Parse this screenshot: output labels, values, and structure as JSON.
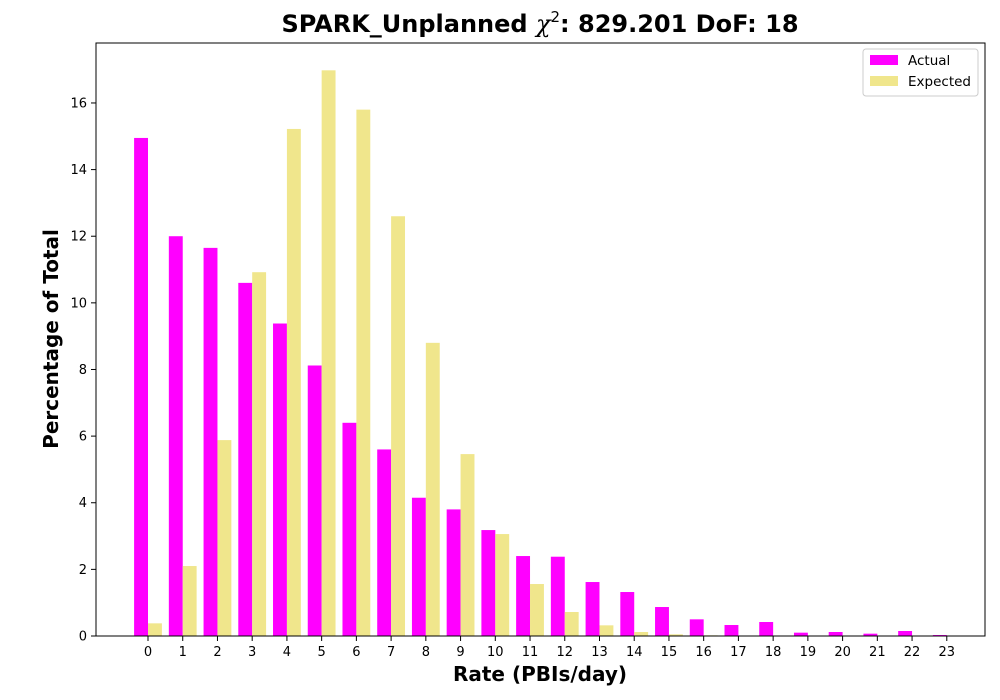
{
  "chart_data": {
    "type": "bar",
    "title_prefix": "SPARK_Unplanned ",
    "title_chi": "χ",
    "title_sup": "2",
    "title_suffix": ": 829.201 DoF: 18",
    "xlabel": "Rate (PBIs/day)",
    "ylabel": "Percentage of Total",
    "categories": [
      "0",
      "1",
      "2",
      "3",
      "4",
      "5",
      "6",
      "7",
      "8",
      "9",
      "10",
      "11",
      "12",
      "13",
      "14",
      "15",
      "16",
      "17",
      "18",
      "19",
      "20",
      "21",
      "22",
      "23"
    ],
    "ylim": [
      0,
      17.8
    ],
    "yticks": [
      0,
      2,
      4,
      6,
      8,
      10,
      12,
      14,
      16
    ],
    "legend_position": "top-right",
    "series": [
      {
        "name": "Actual",
        "color": "#ff00ff",
        "values": [
          14.95,
          12.0,
          11.65,
          10.6,
          9.38,
          8.12,
          6.4,
          5.6,
          4.15,
          3.8,
          3.18,
          2.4,
          2.38,
          1.62,
          1.32,
          0.87,
          0.5,
          0.33,
          0.42,
          0.1,
          0.12,
          0.07,
          0.15,
          0.03
        ]
      },
      {
        "name": "Expected",
        "color": "#f0e68c",
        "values": [
          0.38,
          2.1,
          5.88,
          10.92,
          15.22,
          16.98,
          15.8,
          12.6,
          8.8,
          5.46,
          3.06,
          1.56,
          0.72,
          0.32,
          0.12,
          0.05,
          0.02,
          0.0,
          0.0,
          0.0,
          0.0,
          0.0,
          0.0,
          0.0
        ]
      }
    ]
  }
}
